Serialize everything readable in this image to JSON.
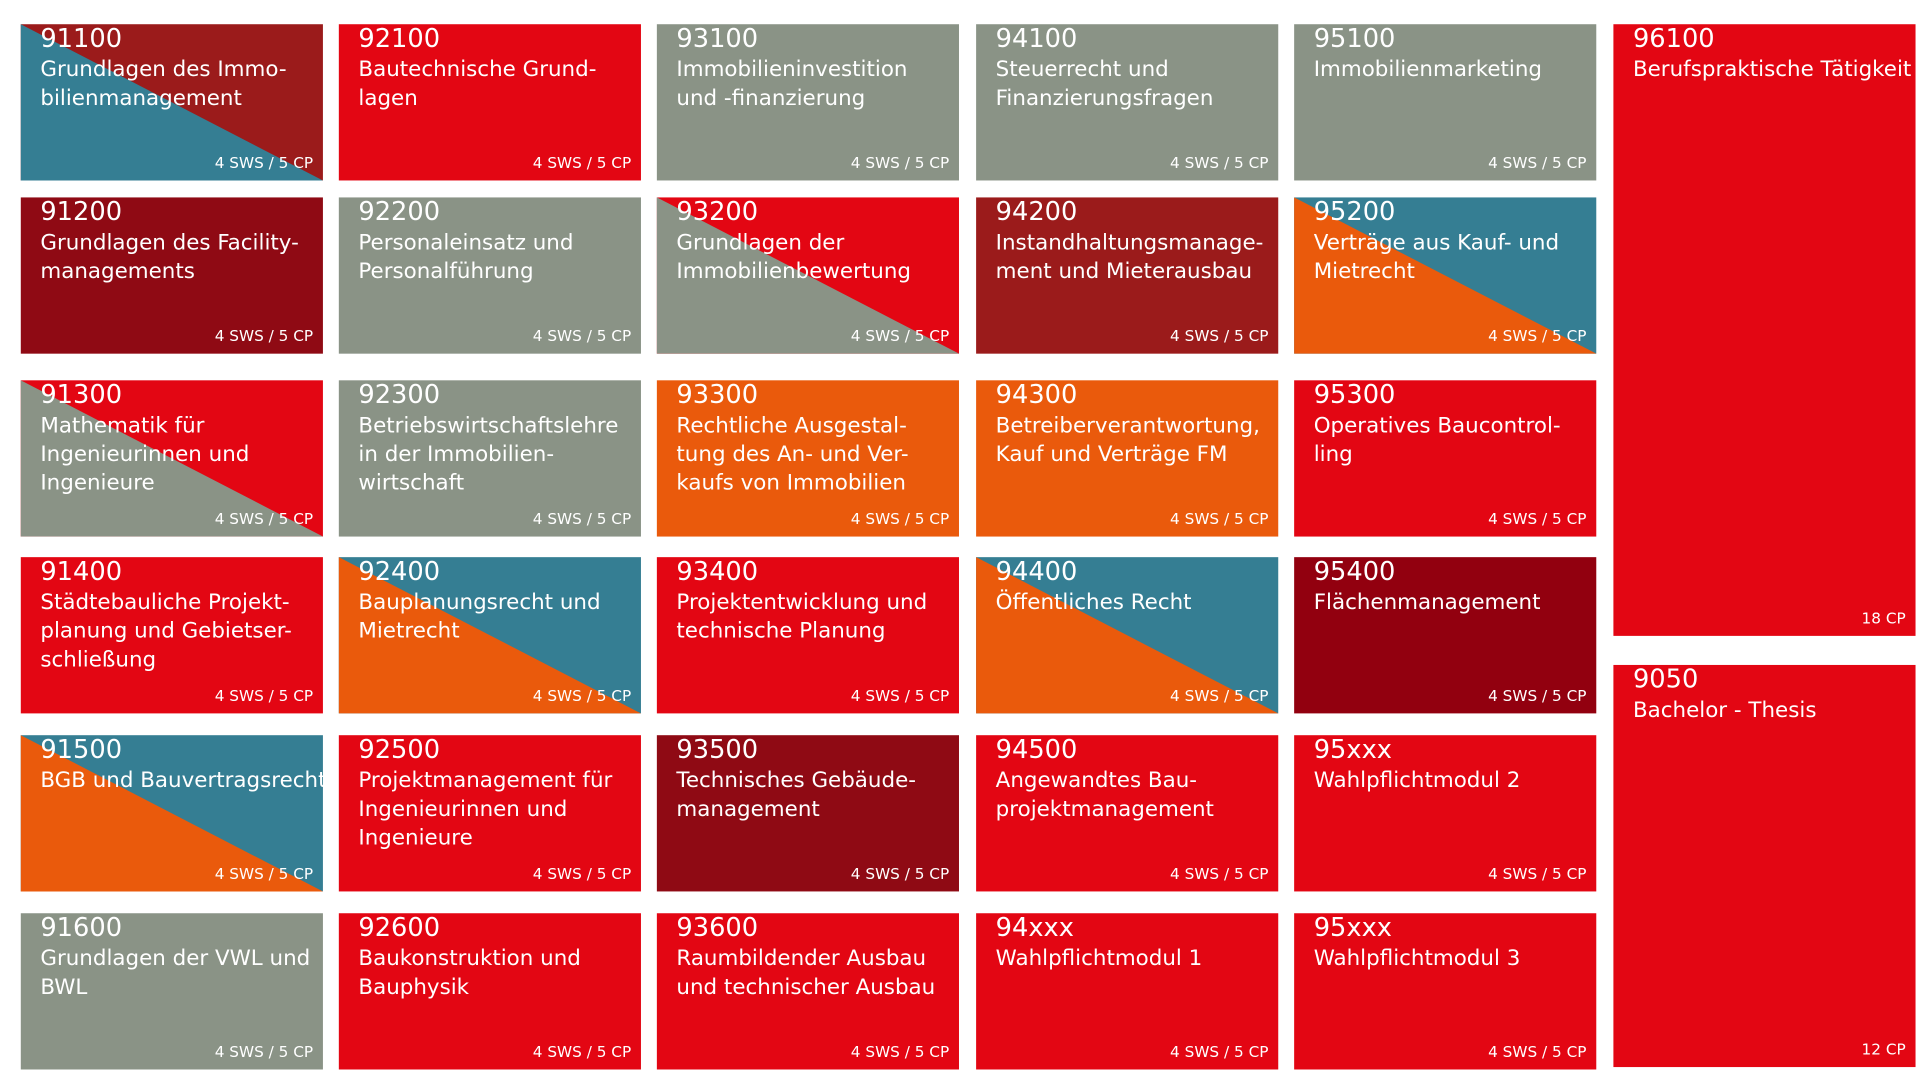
{
  "columns": [
    {
      "modules": [
        {
          "code": "91100",
          "title": [
            "Grundlagen des Immo-",
            "bilienmanagement"
          ],
          "credits": "4 SWS / 5 CP",
          "colors": [
            "#9b1b1b",
            "#357e93"
          ]
        },
        {
          "code": "91200",
          "title": [
            "Grundlagen des Facility-",
            "managements"
          ],
          "credits": "4 SWS / 5 CP",
          "colors": [
            "#8f0a14"
          ]
        },
        {
          "code": "91300",
          "title": [
            "Mathematik für",
            "Ingenieurinnen und",
            "Ingenieure"
          ],
          "credits": "4 SWS / 5 CP",
          "colors": [
            "#e30613",
            "#8a9386"
          ]
        },
        {
          "code": "91400",
          "title": [
            "Städtebauliche Projekt-",
            "planung und Gebietser-",
            "schließung"
          ],
          "credits": "4 SWS / 5 CP",
          "colors": [
            "#e30613"
          ]
        },
        {
          "code": "91500",
          "title": [
            "BGB und Bauvertragsrecht"
          ],
          "credits": "4 SWS / 5 CP",
          "colors": [
            "#357e93",
            "#ea5a0c"
          ]
        },
        {
          "code": "91600",
          "title": [
            "Grundlagen der VWL und",
            "BWL"
          ],
          "credits": "4 SWS / 5 CP",
          "colors": [
            "#8a9386"
          ]
        }
      ]
    },
    {
      "modules": [
        {
          "code": "92100",
          "title": [
            "Bautechnische Grund-",
            "lagen"
          ],
          "credits": "4 SWS / 5 CP",
          "colors": [
            "#e30613"
          ]
        },
        {
          "code": "92200",
          "title": [
            "Personaleinsatz und",
            "Personalführung"
          ],
          "credits": "4 SWS / 5 CP",
          "colors": [
            "#8a9386"
          ]
        },
        {
          "code": "92300",
          "title": [
            "Betriebswirtschaftslehre",
            "in der Immobilien-",
            "wirtschaft"
          ],
          "credits": "4 SWS / 5 CP",
          "colors": [
            "#8a9386"
          ]
        },
        {
          "code": "92400",
          "title": [
            "Bauplanungsrecht und",
            "Mietrecht"
          ],
          "credits": "4 SWS / 5 CP",
          "colors": [
            "#357e93",
            "#ea5a0c"
          ]
        },
        {
          "code": "92500",
          "title": [
            "Projektmanagement für",
            "Ingenieurinnen und",
            "Ingenieure"
          ],
          "credits": "4 SWS / 5 CP",
          "colors": [
            "#e30613"
          ]
        },
        {
          "code": "92600",
          "title": [
            "Baukonstruktion und",
            "Bauphysik"
          ],
          "credits": "4 SWS / 5 CP",
          "colors": [
            "#e30613"
          ]
        }
      ]
    },
    {
      "modules": [
        {
          "code": "93100",
          "title": [
            "Immobilieninvestition",
            "und -finanzierung"
          ],
          "credits": "4 SWS / 5 CP",
          "colors": [
            "#8a9386"
          ]
        },
        {
          "code": "93200",
          "title": [
            "Grundlagen der",
            "Immobilienbewertung"
          ],
          "credits": "4 SWS / 5 CP",
          "colors": [
            "#e30613",
            "#8a9386"
          ]
        },
        {
          "code": "93300",
          "title": [
            "Rechtliche Ausgestal-",
            "tung des An- und Ver-",
            "kaufs von Immobilien"
          ],
          "credits": "4 SWS / 5 CP",
          "colors": [
            "#ea5a0c"
          ]
        },
        {
          "code": "93400",
          "title": [
            "Projektentwicklung und",
            "technische Planung"
          ],
          "credits": "4 SWS / 5 CP",
          "colors": [
            "#e30613"
          ]
        },
        {
          "code": "93500",
          "title": [
            "Technisches Gebäude-",
            "management"
          ],
          "credits": "4 SWS / 5 CP",
          "colors": [
            "#8f0a14"
          ]
        },
        {
          "code": "93600",
          "title": [
            "Raumbildender Ausbau",
            "und technischer Ausbau"
          ],
          "credits": "4 SWS / 5 CP",
          "colors": [
            "#e30613"
          ]
        }
      ]
    },
    {
      "modules": [
        {
          "code": "94100",
          "title": [
            "Steuerrecht und",
            "Finanzierungsfragen"
          ],
          "credits": "4 SWS / 5 CP",
          "colors": [
            "#8a9386"
          ]
        },
        {
          "code": "94200",
          "title": [
            "Instandhaltungsmanage-",
            "ment und Mieterausbau"
          ],
          "credits": "4 SWS / 5 CP",
          "colors": [
            "#9b1b1b"
          ]
        },
        {
          "code": "94300",
          "title": [
            "Betreiberverantwortung,",
            "Kauf und Verträge FM"
          ],
          "credits": "4 SWS / 5 CP",
          "colors": [
            "#ea5a0c"
          ]
        },
        {
          "code": "94400",
          "title": [
            "Öffentliches Recht"
          ],
          "credits": "4 SWS / 5 CP",
          "colors": [
            "#357e93",
            "#ea5a0c"
          ]
        },
        {
          "code": "94500",
          "title": [
            "Angewandtes Bau-",
            "projektmanagement"
          ],
          "credits": "4 SWS / 5 CP",
          "colors": [
            "#e30613"
          ]
        },
        {
          "code": "94xxx",
          "title": [
            "Wahlpflichtmodul 1"
          ],
          "credits": "4 SWS / 5 CP",
          "colors": [
            "#e30613"
          ]
        }
      ]
    },
    {
      "modules": [
        {
          "code": "95100",
          "title": [
            "Immobilienmarketing"
          ],
          "credits": "4 SWS / 5 CP",
          "colors": [
            "#8a9386"
          ]
        },
        {
          "code": "95200",
          "title": [
            "Verträge aus Kauf- und",
            "Mietrecht"
          ],
          "credits": "4 SWS / 5 CP",
          "colors": [
            "#357e93",
            "#ea5a0c"
          ]
        },
        {
          "code": "95300",
          "title": [
            "Operatives Baucontrol-",
            "ling"
          ],
          "credits": "4 SWS / 5 CP",
          "colors": [
            "#e30613"
          ]
        },
        {
          "code": "95400",
          "title": [
            "Flächenmanagement"
          ],
          "credits": "4 SWS / 5 CP",
          "colors": [
            "#92000f"
          ]
        },
        {
          "code": "95xxx",
          "title": [
            "Wahlpflichtmodul 2"
          ],
          "credits": "4 SWS / 5 CP",
          "colors": [
            "#e30613"
          ]
        },
        {
          "code": "95xxx",
          "title": [
            "Wahlpflichtmodul 3"
          ],
          "credits": "4 SWS / 5 CP",
          "colors": [
            "#e30613"
          ]
        }
      ]
    },
    {
      "modules": [
        {
          "code": "96100",
          "title": [
            "Berufspraktische Tätigkeit"
          ],
          "credits": "18 CP",
          "colors": [
            "#e30613"
          ]
        },
        {
          "code": "9050",
          "title": [
            "Bachelor - Thesis"
          ],
          "credits": "12 CP",
          "colors": [
            "#e30613"
          ]
        }
      ]
    }
  ]
}
